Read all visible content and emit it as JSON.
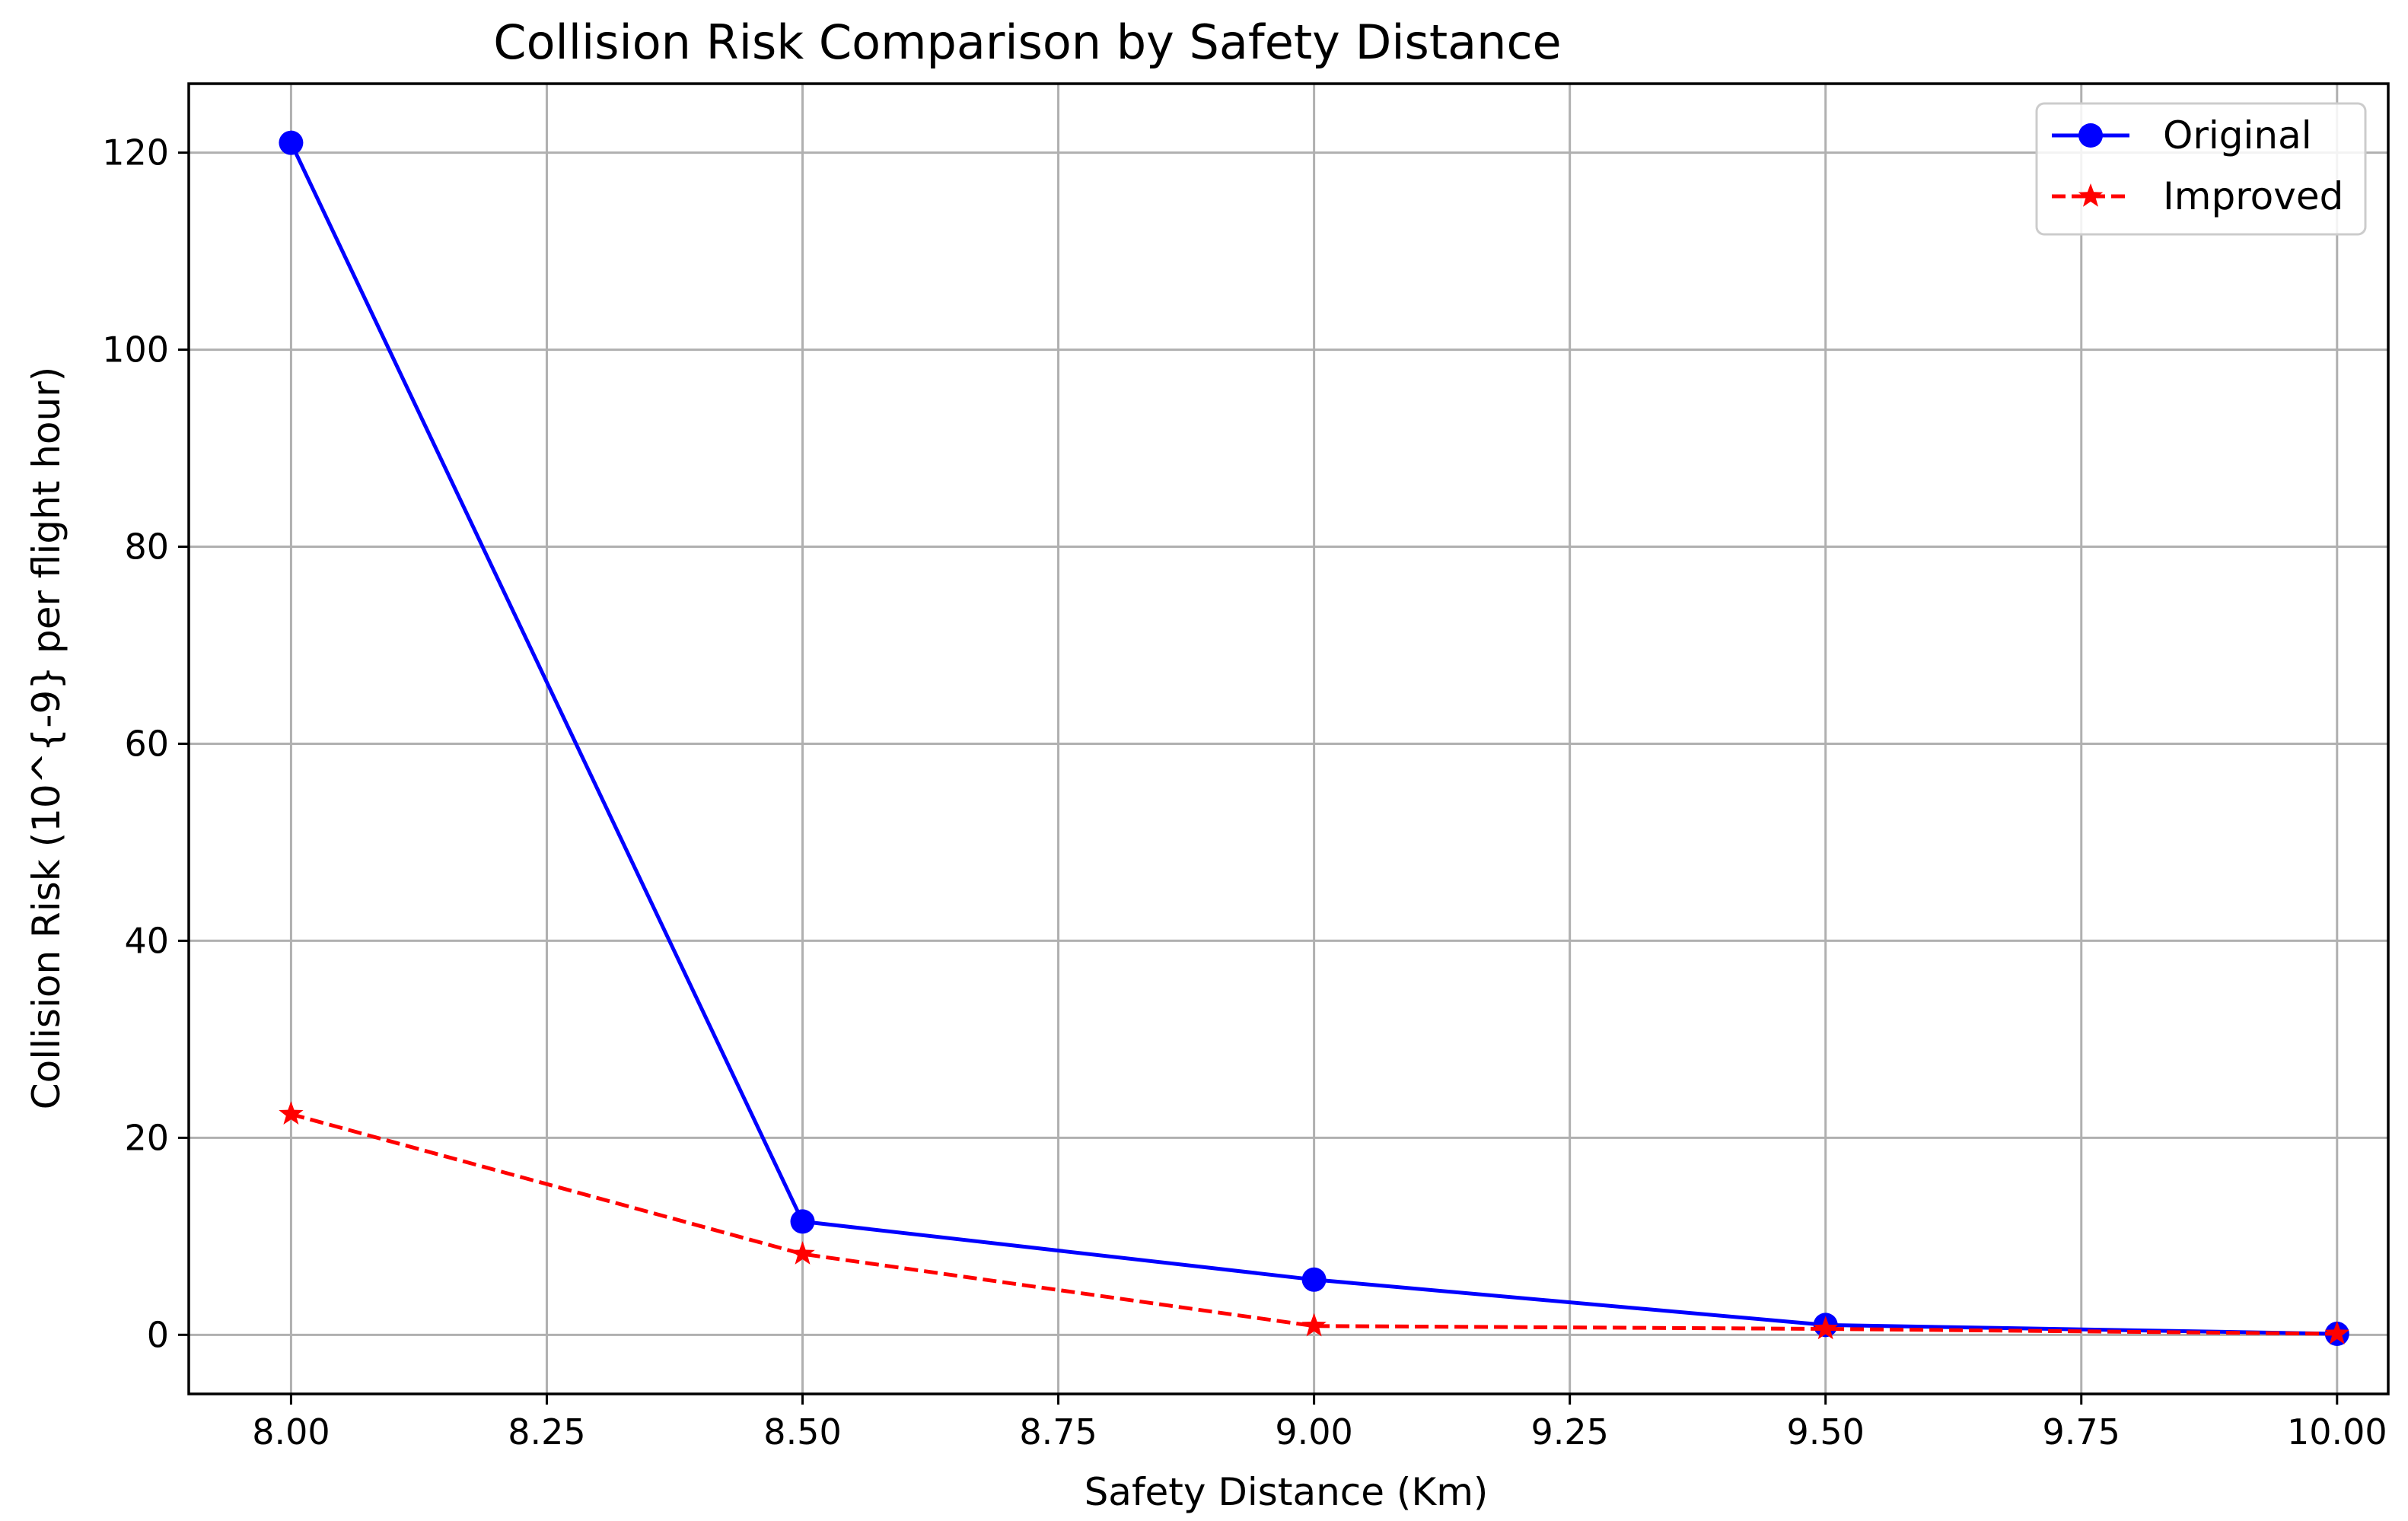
{
  "chart_data": {
    "type": "line",
    "title": "Collision Risk Comparison by Safety Distance",
    "xlabel": "Safety Distance (Km)",
    "ylabel": "Collision Risk (10^{-9} per flight hour)",
    "xlim": [
      7.9,
      10.05
    ],
    "ylim": [
      -6,
      127
    ],
    "x": [
      8.0,
      8.5,
      9.0,
      9.5,
      10.0
    ],
    "xticks": [
      8.0,
      8.25,
      8.5,
      8.75,
      9.0,
      9.25,
      9.5,
      9.75,
      10.0
    ],
    "xtick_labels": [
      "8.00",
      "8.25",
      "8.50",
      "8.75",
      "9.00",
      "9.25",
      "9.50",
      "9.75",
      "10.00"
    ],
    "yticks": [
      0,
      20,
      40,
      60,
      80,
      100,
      120
    ],
    "ytick_labels": [
      "0",
      "20",
      "40",
      "60",
      "80",
      "100",
      "120"
    ],
    "grid": true,
    "legend_position": "top-right",
    "series": [
      {
        "name": "Original",
        "values": [
          121,
          11.5,
          5.6,
          1.0,
          0.1
        ],
        "color": "#0000ff",
        "linestyle": "solid",
        "marker": "circle"
      },
      {
        "name": "Improved",
        "values": [
          22.4,
          8.2,
          0.9,
          0.6,
          0.1
        ],
        "color": "#ff0000",
        "linestyle": "dashed",
        "marker": "star"
      }
    ]
  }
}
